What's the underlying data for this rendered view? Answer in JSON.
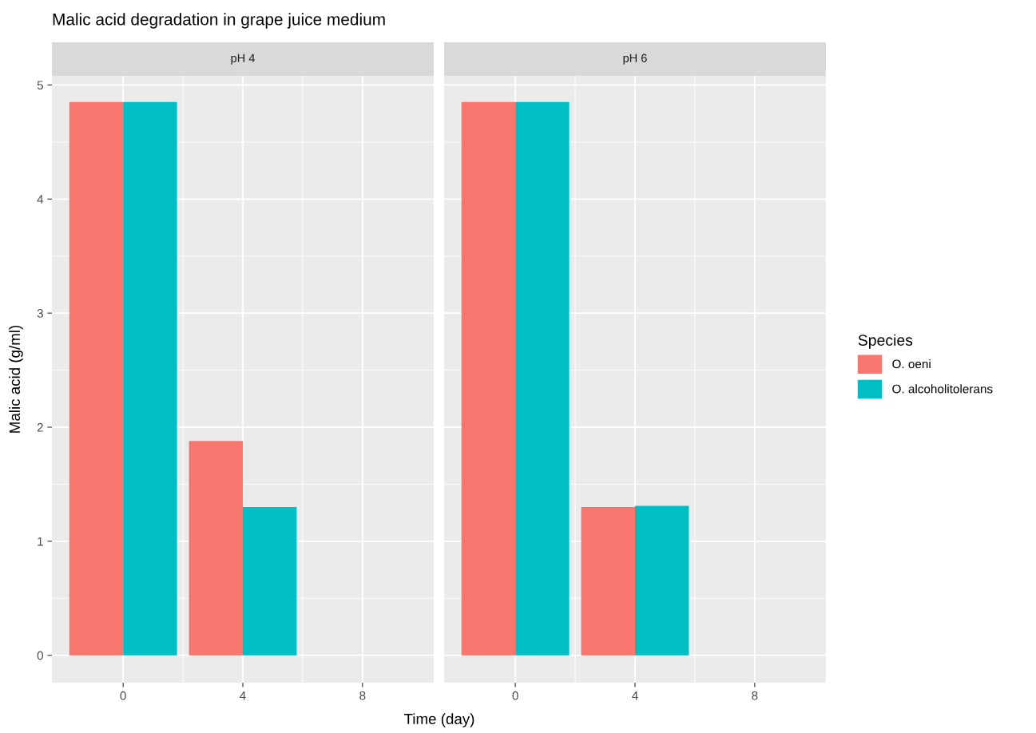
{
  "chart_data": [
    {
      "type": "bar",
      "title": "Malic acid degradation in grape juice medium",
      "subtitle": "pH 4",
      "xlabel": "Time (day)",
      "ylabel": "Malic acid (g/ml)",
      "x": [
        0,
        4,
        8
      ],
      "legend_title": "Species",
      "legend": "right",
      "series": [
        {
          "name": "O. oeni",
          "color": "#f8766d",
          "values": [
            4.85,
            1.88,
            0
          ]
        },
        {
          "name": "O. alcoholitolerans",
          "color": "#00bfc4",
          "values": [
            4.85,
            1.3,
            0
          ]
        }
      ],
      "xlim": [
        -2.38,
        10.38
      ],
      "xticks": [
        0,
        4,
        8
      ],
      "ylim": [
        -0.24,
        5.08
      ],
      "yticks": [
        0,
        1,
        2,
        3,
        4,
        5
      ],
      "grid": true
    },
    {
      "type": "bar",
      "subtitle": "pH 6",
      "x": [
        0,
        4,
        8
      ],
      "series": [
        {
          "color": "#f8766d",
          "values": [
            4.85,
            1.3,
            0
          ]
        },
        {
          "color": "#00bfc4",
          "values": [
            4.85,
            1.31,
            0
          ]
        }
      ],
      "xlim": [
        -2.38,
        10.38
      ],
      "xticks": [
        0,
        4,
        8
      ],
      "ylim": [
        -0.24,
        5.08
      ],
      "yticks": [
        0,
        1,
        2,
        3,
        4,
        5
      ],
      "grid": true,
      "tick_labels": "x"
    }
  ]
}
